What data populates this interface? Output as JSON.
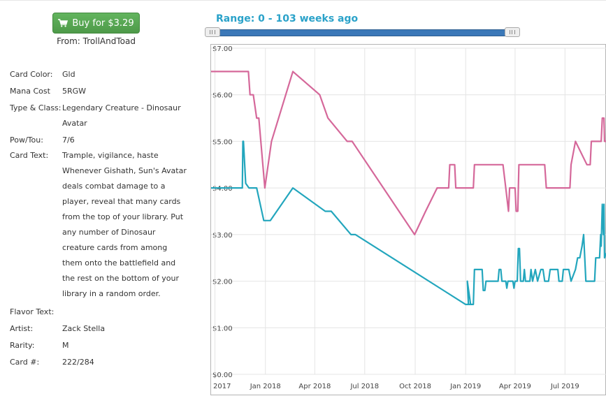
{
  "buy": {
    "label": "Buy for $3.29",
    "from": "From: TrollAndToad"
  },
  "details": [
    {
      "label": "Card Color:",
      "lines": [
        "Gld"
      ]
    },
    {
      "label": "Mana Cost",
      "lines": [
        "5RGW"
      ]
    },
    {
      "label": "Type & Class:",
      "lines": [
        "Legendary Creature - Dinosaur",
        "Avatar"
      ]
    },
    {
      "label": "Pow/Tou:",
      "lines": [
        "7/6"
      ]
    },
    {
      "label": "Card Text:",
      "lines": [
        "Trample, vigilance, haste",
        "Whenever Gishath, Sun's Avatar",
        "deals combat damage to a",
        "player, reveal that many cards",
        "from the top of your library. Put",
        "any number of Dinosaur",
        "creature cards from among",
        "them onto the battlefield and",
        "the rest on the bottom of your",
        "library in a random order."
      ]
    },
    {
      "label": "Flavor Text:",
      "lines": []
    },
    {
      "label": "Artist:",
      "lines": [
        "Zack Stella"
      ]
    },
    {
      "label": "Rarity:",
      "lines": [
        "M"
      ]
    },
    {
      "label": "Card #:",
      "lines": [
        "222/284"
      ]
    }
  ],
  "range": {
    "label": "Range: 0 - 103 weeks ago",
    "min_weeks": 0,
    "max_weeks": 103
  },
  "chart_data": {
    "type": "line",
    "x_axis_type": "date",
    "x_range": [
      "2017-09-24",
      "2019-09-15"
    ],
    "ylim": [
      0,
      7
    ],
    "y_ticks": [
      "$0.00",
      "$1.00",
      "$2.00",
      "$3.00",
      "$4.00",
      "$5.00",
      "$6.00",
      "$7.00"
    ],
    "x_ticks": [
      {
        "label": "Oct 2017",
        "date": "2017-10-01"
      },
      {
        "label": "Jan 2018",
        "date": "2018-01-01"
      },
      {
        "label": "Apr 2018",
        "date": "2018-04-01"
      },
      {
        "label": "Jul 2018",
        "date": "2018-07-01"
      },
      {
        "label": "Oct 2018",
        "date": "2018-10-01"
      },
      {
        "label": "Jan 2019",
        "date": "2019-01-01"
      },
      {
        "label": "Apr 2019",
        "date": "2019-04-01"
      },
      {
        "label": "Jul 2019",
        "date": "2019-07-01"
      }
    ],
    "grid": true,
    "series": [
      {
        "color": "#d5689a",
        "points": [
          [
            "2017-09-24",
            6.5
          ],
          [
            "2017-12-01",
            6.5
          ],
          [
            "2017-12-04",
            6.0
          ],
          [
            "2017-12-10",
            6.0
          ],
          [
            "2017-12-16",
            5.5
          ],
          [
            "2017-12-20",
            5.5
          ],
          [
            "2017-12-31",
            4.0
          ],
          [
            "2018-01-12",
            5.0
          ],
          [
            "2018-02-20",
            6.5
          ],
          [
            "2018-04-10",
            6.0
          ],
          [
            "2018-04-25",
            5.5
          ],
          [
            "2018-05-30",
            5.0
          ],
          [
            "2018-06-08",
            5.0
          ],
          [
            "2018-09-30",
            3.0
          ],
          [
            "2018-10-20",
            3.5
          ],
          [
            "2018-11-10",
            4.0
          ],
          [
            "2018-12-01",
            4.0
          ],
          [
            "2018-12-03",
            4.5
          ],
          [
            "2018-12-12",
            4.5
          ],
          [
            "2018-12-14",
            4.0
          ],
          [
            "2019-01-15",
            4.0
          ],
          [
            "2019-01-17",
            4.5
          ],
          [
            "2019-03-10",
            4.5
          ],
          [
            "2019-03-15",
            4.0
          ],
          [
            "2019-03-20",
            3.5
          ],
          [
            "2019-03-22",
            4.0
          ],
          [
            "2019-04-01",
            4.0
          ],
          [
            "2019-04-03",
            3.5
          ],
          [
            "2019-04-06",
            3.5
          ],
          [
            "2019-04-08",
            4.5
          ],
          [
            "2019-05-25",
            4.5
          ],
          [
            "2019-05-28",
            4.0
          ],
          [
            "2019-07-10",
            4.0
          ],
          [
            "2019-07-12",
            4.5
          ],
          [
            "2019-07-20",
            5.0
          ],
          [
            "2019-08-10",
            4.5
          ],
          [
            "2019-08-16",
            4.5
          ],
          [
            "2019-08-18",
            5.0
          ],
          [
            "2019-09-05",
            5.0
          ],
          [
            "2019-09-07",
            5.5
          ],
          [
            "2019-09-10",
            5.5
          ],
          [
            "2019-09-11",
            5.0
          ],
          [
            "2019-09-14",
            5.0
          ]
        ]
      },
      {
        "color": "#23a6bd",
        "points": [
          [
            "2017-09-24",
            4.0
          ],
          [
            "2017-11-20",
            4.0
          ],
          [
            "2017-11-21",
            5.0
          ],
          [
            "2017-11-22",
            5.0
          ],
          [
            "2017-11-26",
            4.1
          ],
          [
            "2017-12-02",
            4.0
          ],
          [
            "2017-12-16",
            4.0
          ],
          [
            "2017-12-29",
            3.3
          ],
          [
            "2018-01-10",
            3.3
          ],
          [
            "2018-02-20",
            4.0
          ],
          [
            "2018-04-20",
            3.5
          ],
          [
            "2018-05-01",
            3.5
          ],
          [
            "2018-06-06",
            3.0
          ],
          [
            "2018-06-14",
            3.0
          ],
          [
            "2019-01-01",
            1.5
          ],
          [
            "2019-01-10",
            1.5
          ],
          [
            "2019-01-04",
            2.0
          ],
          [
            "2019-01-06",
            1.5
          ],
          [
            "2019-01-15",
            1.5
          ],
          [
            "2019-01-17",
            2.25
          ],
          [
            "2019-01-31",
            2.25
          ],
          [
            "2019-02-02",
            1.8
          ],
          [
            "2019-02-05",
            1.8
          ],
          [
            "2019-02-07",
            2.0
          ],
          [
            "2019-03-01",
            2.0
          ],
          [
            "2019-03-03",
            2.25
          ],
          [
            "2019-03-06",
            2.25
          ],
          [
            "2019-03-08",
            2.0
          ],
          [
            "2019-03-15",
            2.0
          ],
          [
            "2019-03-17",
            1.85
          ],
          [
            "2019-03-19",
            2.0
          ],
          [
            "2019-03-28",
            2.0
          ],
          [
            "2019-03-30",
            1.85
          ],
          [
            "2019-04-01",
            2.0
          ],
          [
            "2019-04-05",
            2.0
          ],
          [
            "2019-04-07",
            2.7
          ],
          [
            "2019-04-09",
            2.7
          ],
          [
            "2019-04-11",
            2.0
          ],
          [
            "2019-04-16",
            2.0
          ],
          [
            "2019-04-18",
            2.25
          ],
          [
            "2019-04-20",
            2.0
          ],
          [
            "2019-04-28",
            2.0
          ],
          [
            "2019-04-30",
            2.25
          ],
          [
            "2019-05-03",
            2.0
          ],
          [
            "2019-05-08",
            2.25
          ],
          [
            "2019-05-12",
            2.0
          ],
          [
            "2019-05-18",
            2.25
          ],
          [
            "2019-05-22",
            2.25
          ],
          [
            "2019-05-25",
            2.0
          ],
          [
            "2019-06-01",
            2.0
          ],
          [
            "2019-06-04",
            2.25
          ],
          [
            "2019-06-18",
            2.25
          ],
          [
            "2019-06-20",
            2.0
          ],
          [
            "2019-06-26",
            2.0
          ],
          [
            "2019-06-28",
            2.25
          ],
          [
            "2019-07-08",
            2.25
          ],
          [
            "2019-07-12",
            2.0
          ],
          [
            "2019-07-20",
            2.25
          ],
          [
            "2019-07-24",
            2.5
          ],
          [
            "2019-07-28",
            2.5
          ],
          [
            "2019-08-01",
            2.75
          ],
          [
            "2019-08-04",
            3.0
          ],
          [
            "2019-08-06",
            2.5
          ],
          [
            "2019-08-08",
            2.0
          ],
          [
            "2019-08-24",
            2.0
          ],
          [
            "2019-08-26",
            2.5
          ],
          [
            "2019-09-02",
            2.5
          ],
          [
            "2019-09-04",
            3.0
          ],
          [
            "2019-09-05",
            2.75
          ],
          [
            "2019-09-07",
            3.65
          ],
          [
            "2019-09-09",
            3.0
          ],
          [
            "2019-09-10",
            3.65
          ],
          [
            "2019-09-11",
            2.5
          ],
          [
            "2019-09-14",
            2.6
          ]
        ]
      }
    ]
  }
}
